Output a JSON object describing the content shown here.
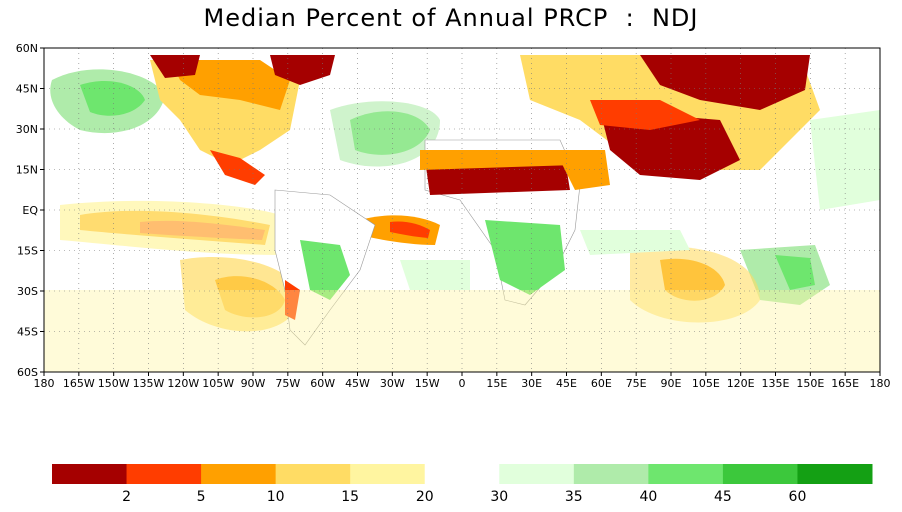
{
  "title": "Median Percent of Annual PRCP  :  NDJ",
  "lat_labels": [
    "60N",
    "45N",
    "30N",
    "15N",
    "EQ",
    "15S",
    "30S",
    "45S",
    "60S"
  ],
  "lon_labels": [
    "180",
    "165W",
    "150W",
    "135W",
    "120W",
    "105W",
    "90W",
    "75W",
    "60W",
    "45W",
    "30W",
    "15W",
    "0",
    "15E",
    "30E",
    "45E",
    "60E",
    "75E",
    "90E",
    "105E",
    "120E",
    "135E",
    "150E",
    "165E",
    "180"
  ],
  "legend": {
    "colors": [
      "#a50000",
      "#ff3d00",
      "#ffa000",
      "#ffdc64",
      "#fff5a0",
      "#ffffff",
      "#e1ffdc",
      "#afebaa",
      "#6ee66e",
      "#3cc83c",
      "#14a014"
    ],
    "labels": [
      "2",
      "5",
      "10",
      "15",
      "20",
      "30",
      "35",
      "40",
      "45",
      "60"
    ]
  }
}
